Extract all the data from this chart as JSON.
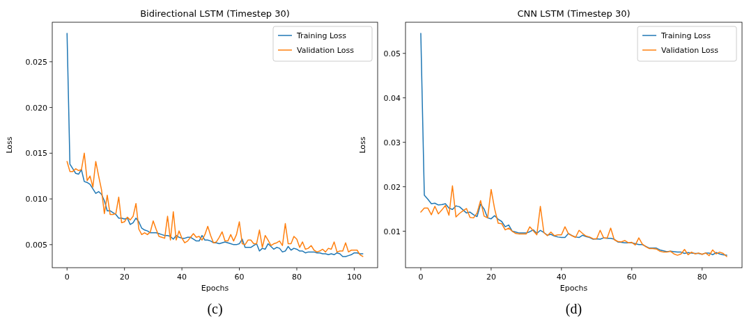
{
  "chart_data": [
    {
      "type": "line",
      "title": "Bidirectional LSTM (Timestep 30)",
      "xlabel": "Epochs",
      "ylabel": "Loss",
      "annotations": [
        "(c)"
      ],
      "legend": "top right",
      "grid": false,
      "xlim": [
        -5.15,
        108.15
      ],
      "xticks": [
        0,
        20,
        40,
        60,
        80,
        100
      ],
      "ylim": [
        0.00248,
        0.02932
      ],
      "yticks": [
        0.005,
        {
          "value": 0.01,
          "label": "0.010"
        },
        0.015,
        {
          "value": 0.02,
          "label": "0.020"
        },
        0.025
      ],
      "x": [
        0,
        1,
        2,
        3,
        4,
        5,
        6,
        7,
        8,
        9,
        10,
        11,
        12,
        13,
        14,
        15,
        16,
        17,
        18,
        19,
        20,
        21,
        22,
        23,
        24,
        25,
        26,
        27,
        28,
        29,
        30,
        31,
        32,
        33,
        34,
        35,
        36,
        37,
        38,
        39,
        40,
        41,
        42,
        43,
        44,
        45,
        46,
        47,
        48,
        49,
        50,
        51,
        52,
        53,
        54,
        55,
        56,
        57,
        58,
        59,
        60,
        61,
        62,
        63,
        64,
        65,
        66,
        67,
        68,
        69,
        70,
        71,
        72,
        73,
        74,
        75,
        76,
        77,
        78,
        79,
        80,
        81,
        82,
        83,
        84,
        85,
        86,
        87,
        88,
        89,
        90,
        91,
        92,
        93,
        94,
        95,
        96,
        97,
        98,
        99,
        100,
        101,
        102,
        103
      ],
      "series": [
        {
          "name": "Training Loss",
          "color": "#1f77b4",
          "values": [
            0.0281,
            0.0138,
            0.0133,
            0.0128,
            0.0127,
            0.0132,
            0.0119,
            0.0118,
            0.0116,
            0.0111,
            0.0106,
            0.0108,
            0.0105,
            0.0098,
            0.0087,
            0.0087,
            0.0085,
            0.0083,
            0.0079,
            0.0079,
            0.0078,
            0.0079,
            0.0072,
            0.0074,
            0.0079,
            0.0075,
            0.0068,
            0.0066,
            0.0065,
            0.0063,
            0.0063,
            0.0063,
            0.0062,
            0.0061,
            0.006,
            0.006,
            0.0059,
            0.0056,
            0.006,
            0.0058,
            0.0057,
            0.0057,
            0.0058,
            0.0058,
            0.0056,
            0.0054,
            0.0054,
            0.006,
            0.0055,
            0.0055,
            0.0054,
            0.0052,
            0.0052,
            0.0051,
            0.0052,
            0.0053,
            0.0052,
            0.0051,
            0.005,
            0.005,
            0.0051,
            0.0056,
            0.0047,
            0.0047,
            0.0047,
            0.0049,
            0.0051,
            0.0043,
            0.0046,
            0.0045,
            0.0051,
            0.0048,
            0.0045,
            0.0047,
            0.0046,
            0.0042,
            0.0043,
            0.0048,
            0.0044,
            0.0046,
            0.0045,
            0.0043,
            0.0043,
            0.0041,
            0.0042,
            0.0042,
            0.0042,
            0.0041,
            0.0041,
            0.004,
            0.004,
            0.0039,
            0.004,
            0.0039,
            0.0041,
            0.004,
            0.0037,
            0.0037,
            0.0038,
            0.0039,
            0.0041,
            0.0041,
            0.004,
            0.004
          ]
        },
        {
          "name": "Validation Loss",
          "color": "#ff7f0e",
          "values": [
            0.0141,
            0.013,
            0.013,
            0.0133,
            0.0131,
            0.0132,
            0.015,
            0.012,
            0.0125,
            0.0113,
            0.0141,
            0.0125,
            0.011,
            0.0084,
            0.0104,
            0.0083,
            0.0083,
            0.0084,
            0.0102,
            0.0074,
            0.0075,
            0.008,
            0.0077,
            0.0081,
            0.0095,
            0.0067,
            0.0061,
            0.0063,
            0.0061,
            0.0064,
            0.0076,
            0.0067,
            0.0059,
            0.0058,
            0.0057,
            0.0081,
            0.0055,
            0.0086,
            0.0055,
            0.0065,
            0.0057,
            0.0052,
            0.0054,
            0.0058,
            0.0062,
            0.0058,
            0.0059,
            0.0055,
            0.0061,
            0.007,
            0.006,
            0.0052,
            0.0053,
            0.0058,
            0.0064,
            0.0054,
            0.0054,
            0.0061,
            0.0054,
            0.0061,
            0.0075,
            0.0051,
            0.005,
            0.0055,
            0.0055,
            0.0051,
            0.0051,
            0.0066,
            0.0047,
            0.006,
            0.0055,
            0.0049,
            0.0051,
            0.0052,
            0.0054,
            0.0049,
            0.0073,
            0.0051,
            0.0051,
            0.0059,
            0.0056,
            0.0047,
            0.0053,
            0.0045,
            0.0046,
            0.0049,
            0.0044,
            0.0042,
            0.0043,
            0.0045,
            0.0042,
            0.0046,
            0.0045,
            0.0053,
            0.0042,
            0.0043,
            0.0043,
            0.0052,
            0.0042,
            0.0044,
            0.0044,
            0.0044,
            0.0039,
            0.0037
          ]
        }
      ]
    },
    {
      "type": "line",
      "title": "CNN LSTM (Timestep 30)",
      "xlabel": "Epochs",
      "ylabel": "Loss",
      "annotations": [
        "(d)"
      ],
      "legend": "top right",
      "grid": false,
      "xlim": [
        -4.35,
        91.35
      ],
      "xticks": [
        0,
        20,
        40,
        60,
        80
      ],
      "ylim": [
        0.0018,
        0.057
      ],
      "yticks": [
        0.01,
        0.02,
        0.03,
        0.04,
        0.05
      ],
      "x": [
        0,
        1,
        2,
        3,
        4,
        5,
        6,
        7,
        8,
        9,
        10,
        11,
        12,
        13,
        14,
        15,
        16,
        17,
        18,
        19,
        20,
        21,
        22,
        23,
        24,
        25,
        26,
        27,
        28,
        29,
        30,
        31,
        32,
        33,
        34,
        35,
        36,
        37,
        38,
        39,
        40,
        41,
        42,
        43,
        44,
        45,
        46,
        47,
        48,
        49,
        50,
        51,
        52,
        53,
        54,
        55,
        56,
        57,
        58,
        59,
        60,
        61,
        62,
        63,
        64,
        65,
        66,
        67,
        68,
        69,
        70,
        71,
        72,
        73,
        74,
        75,
        76,
        77,
        78,
        79,
        80,
        81,
        82,
        83,
        84,
        85,
        86,
        87
      ],
      "series": [
        {
          "name": "Training Loss",
          "color": "#1f77b4",
          "values": [
            0.0545,
            0.0181,
            0.0172,
            0.0162,
            0.0163,
            0.0159,
            0.016,
            0.0162,
            0.0152,
            0.0149,
            0.0157,
            0.0155,
            0.0148,
            0.0141,
            0.0143,
            0.0137,
            0.0133,
            0.0161,
            0.015,
            0.013,
            0.0128,
            0.0135,
            0.0127,
            0.0122,
            0.011,
            0.0114,
            0.01,
            0.0098,
            0.0096,
            0.0096,
            0.0096,
            0.0099,
            0.0103,
            0.0095,
            0.0102,
            0.0097,
            0.0091,
            0.0093,
            0.0089,
            0.0087,
            0.0086,
            0.0086,
            0.0095,
            0.009,
            0.0087,
            0.0086,
            0.0091,
            0.0088,
            0.0086,
            0.0082,
            0.0083,
            0.0082,
            0.0085,
            0.0084,
            0.0084,
            0.0082,
            0.0076,
            0.0075,
            0.0074,
            0.0074,
            0.0074,
            0.0072,
            0.007,
            0.007,
            0.0066,
            0.0062,
            0.0062,
            0.0062,
            0.0058,
            0.0056,
            0.0054,
            0.0055,
            0.0054,
            0.0053,
            0.0053,
            0.005,
            0.0052,
            0.0051,
            0.005,
            0.005,
            0.0048,
            0.0051,
            0.0051,
            0.0047,
            0.0052,
            0.0049,
            0.0047,
            0.0046
          ]
        },
        {
          "name": "Validation Loss",
          "color": "#ff7f0e",
          "values": [
            0.0143,
            0.0152,
            0.0152,
            0.0137,
            0.0156,
            0.0139,
            0.0148,
            0.0158,
            0.0136,
            0.0202,
            0.0132,
            0.014,
            0.0146,
            0.0151,
            0.0131,
            0.013,
            0.0141,
            0.0169,
            0.0134,
            0.013,
            0.0194,
            0.015,
            0.0118,
            0.0117,
            0.0103,
            0.0107,
            0.01,
            0.0095,
            0.0094,
            0.0094,
            0.0094,
            0.011,
            0.0101,
            0.0092,
            0.0156,
            0.0097,
            0.009,
            0.0098,
            0.009,
            0.0092,
            0.0092,
            0.011,
            0.0094,
            0.009,
            0.0086,
            0.0102,
            0.0095,
            0.0089,
            0.0087,
            0.0083,
            0.0083,
            0.0102,
            0.0085,
            0.0085,
            0.0107,
            0.0081,
            0.0077,
            0.0076,
            0.0079,
            0.0074,
            0.0075,
            0.0069,
            0.0085,
            0.0071,
            0.0065,
            0.0061,
            0.0061,
            0.006,
            0.0055,
            0.0053,
            0.0053,
            0.0055,
            0.0049,
            0.0046,
            0.0049,
            0.0059,
            0.0047,
            0.0053,
            0.0049,
            0.0051,
            0.0048,
            0.0051,
            0.0045,
            0.0058,
            0.0049,
            0.0053,
            0.005,
            0.0043
          ]
        }
      ]
    }
  ]
}
